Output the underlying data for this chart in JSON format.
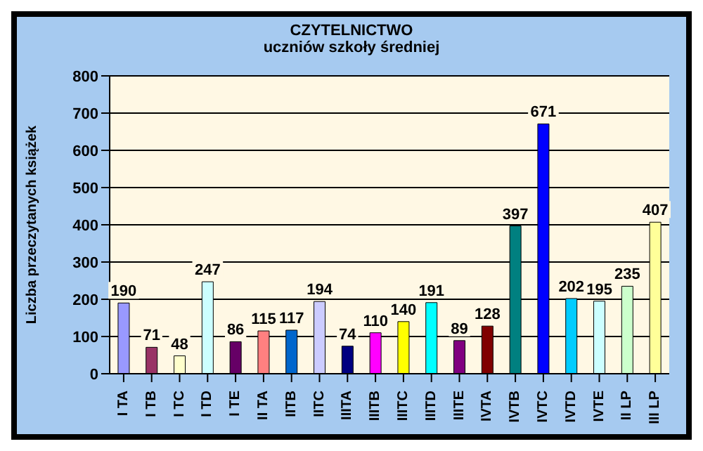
{
  "chart_data": {
    "type": "bar",
    "title": "CZYTELNICTWO",
    "subtitle": "uczniów szkoły średniej",
    "ylabel": "Liczba przeczytanych książek",
    "categories": [
      "I TA",
      "I TB",
      "I TC",
      "I TD",
      "I TE",
      "II TA",
      "IITB",
      "IITC",
      "IIITA",
      "IIITB",
      "IIITC",
      "IIITD",
      "IIITE",
      "IVTA",
      "IVTB",
      "IVTC",
      "IVTD",
      "IVTE",
      "II LP",
      "III LP"
    ],
    "values": [
      190,
      71,
      48,
      247,
      86,
      115,
      117,
      194,
      74,
      110,
      140,
      191,
      89,
      128,
      397,
      671,
      202,
      195,
      235,
      407
    ],
    "colors": [
      "#9999ff",
      "#993366",
      "#ffffcc",
      "#ccffff",
      "#660066",
      "#ff8080",
      "#0066cc",
      "#ccccff",
      "#000080",
      "#ff00ff",
      "#ffff00",
      "#00ffff",
      "#800080",
      "#800000",
      "#008080",
      "#0000ff",
      "#00ccff",
      "#ccffff",
      "#ccffcc",
      "#ffff99"
    ],
    "ylim": [
      0,
      800
    ],
    "yticks": [
      0,
      100,
      200,
      300,
      400,
      500,
      600,
      700,
      800
    ],
    "grid": "y",
    "data_labels": true,
    "legend": false
  }
}
